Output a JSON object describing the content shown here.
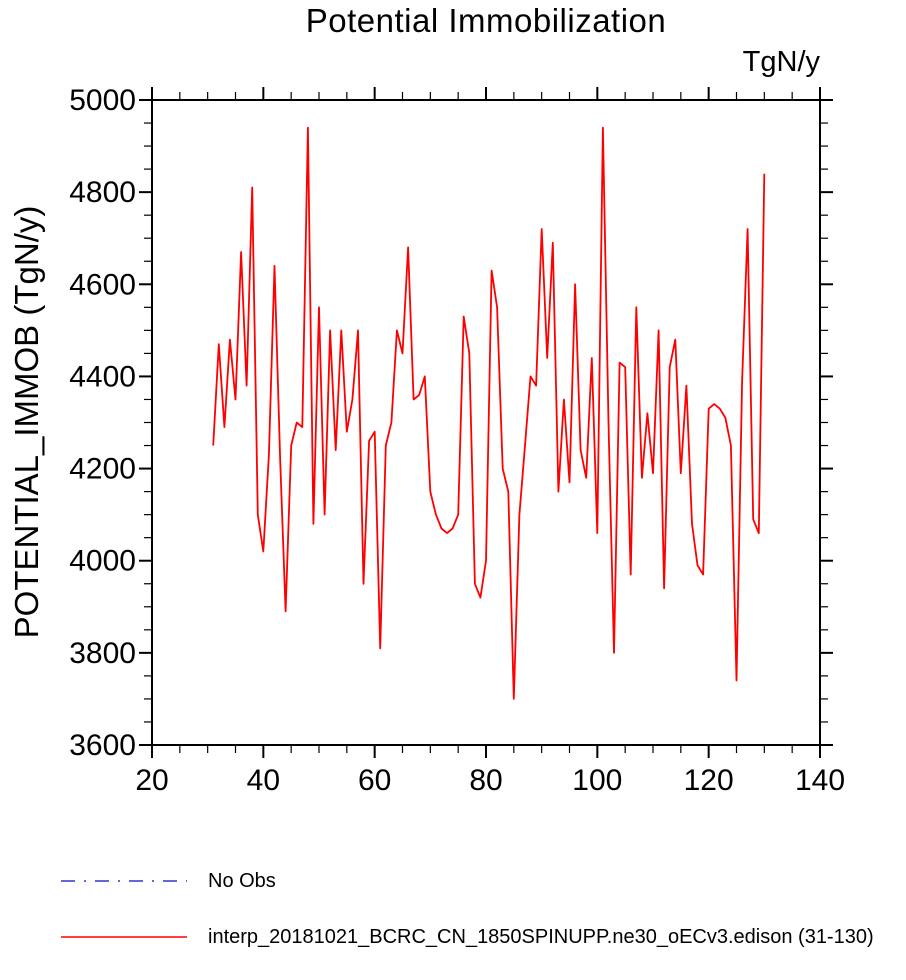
{
  "chart": {
    "title": "Potential Immobilization",
    "unit_label": "TgN/y",
    "ylabel": "POTENTIAL_IMMOB  (TgN/y)"
  },
  "legend": {
    "items": [
      {
        "label": "No Obs",
        "color": "#3333cc",
        "style": "dashed"
      },
      {
        "label": "interp_20181021_BCRC_CN_1850SPINUPP.ne30_oECv3.edison (31-130)",
        "color": "#ff0000",
        "style": "solid"
      }
    ]
  },
  "chart_data": {
    "type": "line",
    "title": "Potential Immobilization",
    "unit_label": "TgN/y",
    "xlabel": "",
    "ylabel": "POTENTIAL_IMMOB  (TgN/y)",
    "xlim": [
      20,
      140
    ],
    "ylim": [
      3600,
      5000
    ],
    "xticks": [
      20,
      40,
      60,
      80,
      100,
      120,
      140
    ],
    "yticks": [
      3600,
      3800,
      4000,
      4200,
      4400,
      4600,
      4800,
      5000
    ],
    "x_minor_step": 5,
    "y_minor_step": 50,
    "grid": false,
    "legend_position": "bottom-left",
    "series": [
      {
        "name": "No Obs",
        "color": "#3333cc",
        "style": "dashed",
        "x": [],
        "values": []
      },
      {
        "name": "interp_20181021_BCRC_CN_1850SPINUPP.ne30_oECv3.edison (31-130)",
        "color": "#ff0000",
        "style": "solid",
        "x": [
          31,
          32,
          33,
          34,
          35,
          36,
          37,
          38,
          39,
          40,
          41,
          42,
          43,
          44,
          45,
          46,
          47,
          48,
          49,
          50,
          51,
          52,
          53,
          54,
          55,
          56,
          57,
          58,
          59,
          60,
          61,
          62,
          63,
          64,
          65,
          66,
          67,
          68,
          69,
          70,
          71,
          72,
          73,
          74,
          75,
          76,
          77,
          78,
          79,
          80,
          81,
          82,
          83,
          84,
          85,
          86,
          87,
          88,
          89,
          90,
          91,
          92,
          93,
          94,
          95,
          96,
          97,
          98,
          99,
          100,
          101,
          102,
          103,
          104,
          105,
          106,
          107,
          108,
          109,
          110,
          111,
          112,
          113,
          114,
          115,
          116,
          117,
          118,
          119,
          120,
          121,
          122,
          123,
          124,
          125,
          126,
          127,
          128,
          129,
          130
        ],
        "values": [
          4250,
          4470,
          4290,
          4480,
          4350,
          4670,
          4380,
          4810,
          4100,
          4020,
          4230,
          4640,
          4230,
          3890,
          4250,
          4300,
          4290,
          4940,
          4080,
          4550,
          4100,
          4500,
          4240,
          4500,
          4280,
          4350,
          4500,
          3950,
          4260,
          4280,
          3810,
          4250,
          4300,
          4500,
          4450,
          4680,
          4350,
          4360,
          4400,
          4150,
          4100,
          4070,
          4060,
          4070,
          4100,
          4530,
          4450,
          3950,
          3920,
          4000,
          4630,
          4550,
          4200,
          4150,
          3700,
          4100,
          4250,
          4400,
          4380,
          4720,
          4440,
          4690,
          4150,
          4350,
          4170,
          4600,
          4240,
          4180,
          4440,
          4060,
          4940,
          4300,
          3800,
          4430,
          4420,
          3970,
          4550,
          4180,
          4320,
          4190,
          4500,
          3940,
          4420,
          4480,
          4190,
          4380,
          4080,
          3990,
          3970,
          4330,
          4340,
          4330,
          4310,
          4250,
          3740,
          4390,
          4720,
          4090,
          4060,
          4840
        ]
      }
    ]
  }
}
